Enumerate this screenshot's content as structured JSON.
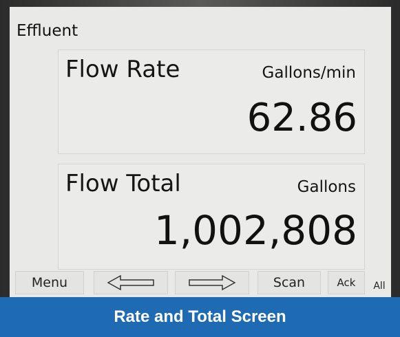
{
  "screen": {
    "title": "Effluent",
    "panels": [
      {
        "label": "Flow Rate",
        "unit": "Gallons/min",
        "value": "62.86"
      },
      {
        "label": "Flow Total",
        "unit": "Gallons",
        "value": "1,002,808"
      }
    ],
    "buttons": {
      "menu": "Menu",
      "scan": "Scan",
      "ack": "Ack",
      "all": "All"
    }
  },
  "caption": "Rate and Total Screen"
}
